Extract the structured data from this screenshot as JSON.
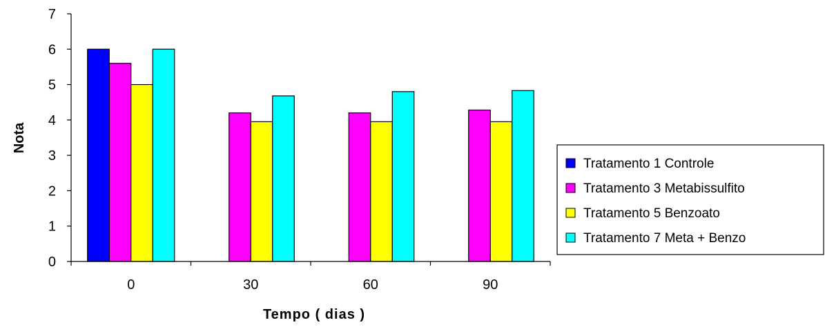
{
  "chart_data": {
    "type": "bar",
    "title": "",
    "xlabel": "Tempo ( dias )",
    "ylabel": "Nota",
    "ylim": [
      0,
      7
    ],
    "yticks": [
      "0",
      "1",
      "2",
      "3",
      "4",
      "5",
      "6",
      "7"
    ],
    "categories": [
      "0",
      "30",
      "60",
      "90"
    ],
    "grid": false,
    "legend_position": "right",
    "series": [
      {
        "name": "Tratamento 1 Controle",
        "color": "#0000ff",
        "values": [
          6.0,
          null,
          null,
          null
        ]
      },
      {
        "name": "Tratamento 3 Metabissulfito",
        "color": "#ff00ff",
        "values": [
          5.6,
          4.2,
          4.2,
          4.28
        ]
      },
      {
        "name": "Tratamento 5 Benzoato",
        "color": "#ffff00",
        "values": [
          5.0,
          3.95,
          3.95,
          3.95
        ]
      },
      {
        "name": "Tratamento 7 Meta + Benzo",
        "color": "#00ffff",
        "values": [
          6.0,
          4.68,
          4.8,
          4.83
        ]
      }
    ]
  }
}
